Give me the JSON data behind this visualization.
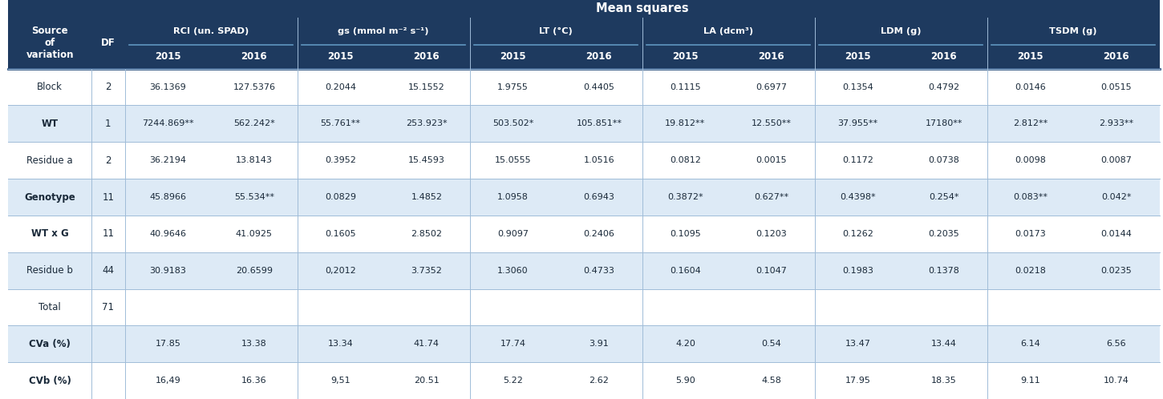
{
  "title": "Mean squares",
  "header_bg": "#1e3a5f",
  "header_text": "#ffffff",
  "row_bg_light": "#ddeaf6",
  "row_bg_white": "#ffffff",
  "sep_color": "#a0bcd8",
  "col_groups": [
    {
      "label": "RCI (un. SPAD)"
    },
    {
      "label": "gs (mmol m⁻² s⁻¹)"
    },
    {
      "label": "LT (°C)"
    },
    {
      "label": "LA (dcm³)"
    },
    {
      "label": "LDM (g)"
    },
    {
      "label": "TSDM (g)"
    }
  ],
  "year_labels": [
    "2015",
    "2016",
    "2015",
    "2016",
    "2015",
    "2016",
    "2015",
    "2016",
    "2015",
    "2016",
    "2015",
    "2016"
  ],
  "row_headers": [
    "Block",
    "WT",
    "Residue a",
    "Genotype",
    "WT x G",
    "Residue b",
    "Total",
    "CVa (%)",
    "CVb (%)"
  ],
  "df_values": [
    "2",
    "1",
    "2",
    "11",
    "11",
    "44",
    "71",
    "",
    ""
  ],
  "table_data": [
    [
      "36.1369",
      "127.5376",
      "0.2044",
      "15.1552",
      "1.9755",
      "0.4405",
      "0.1115",
      "0.6977",
      "0.1354",
      "0.4792",
      "0.0146",
      "0.0515"
    ],
    [
      "7244.869**",
      "562.242*",
      "55.761**",
      "253.923*",
      "503.502*",
      "105.851**",
      "19.812**",
      "12.550**",
      "37.955**",
      "17180**",
      "2.812**",
      "2.933**"
    ],
    [
      "36.2194",
      "13.8143",
      "0.3952",
      "15.4593",
      "15.0555",
      "1.0516",
      "0.0812",
      "0.0015",
      "0.1172",
      "0.0738",
      "0.0098",
      "0.0087"
    ],
    [
      "45.8966",
      "55.534**",
      "0.0829",
      "1.4852",
      "1.0958",
      "0.6943",
      "0.3872*",
      "0.627**",
      "0.4398*",
      "0.254*",
      "0.083**",
      "0.042*"
    ],
    [
      "40.9646",
      "41.0925",
      "0.1605",
      "2.8502",
      "0.9097",
      "0.2406",
      "0.1095",
      "0.1203",
      "0.1262",
      "0.2035",
      "0.0173",
      "0.0144"
    ],
    [
      "30.9183",
      "20.6599",
      "0,2012",
      "3.7352",
      "1.3060",
      "0.4733",
      "0.1604",
      "0.1047",
      "0.1983",
      "0.1378",
      "0.0218",
      "0.0235"
    ],
    [
      "",
      "",
      "",
      "",
      "",
      "",
      "",
      "",
      "",
      "",
      "",
      ""
    ],
    [
      "17.85",
      "13.38",
      "13.34",
      "41.74",
      "17.74",
      "3.91",
      "4.20",
      "0.54",
      "13.47",
      "13.44",
      "6.14",
      "6.56"
    ],
    [
      "16,49",
      "16.36",
      "9,51",
      "20.51",
      "5.22",
      "2.62",
      "5.90",
      "4.58",
      "17.95",
      "18.35",
      "9.11",
      "10.74"
    ]
  ],
  "row_colors": [
    "#ffffff",
    "#ddeaf6",
    "#ffffff",
    "#ddeaf6",
    "#ffffff",
    "#ddeaf6",
    "#ffffff",
    "#ddeaf6",
    "#ffffff"
  ],
  "figsize": [
    14.5,
    4.98
  ],
  "dpi": 100
}
